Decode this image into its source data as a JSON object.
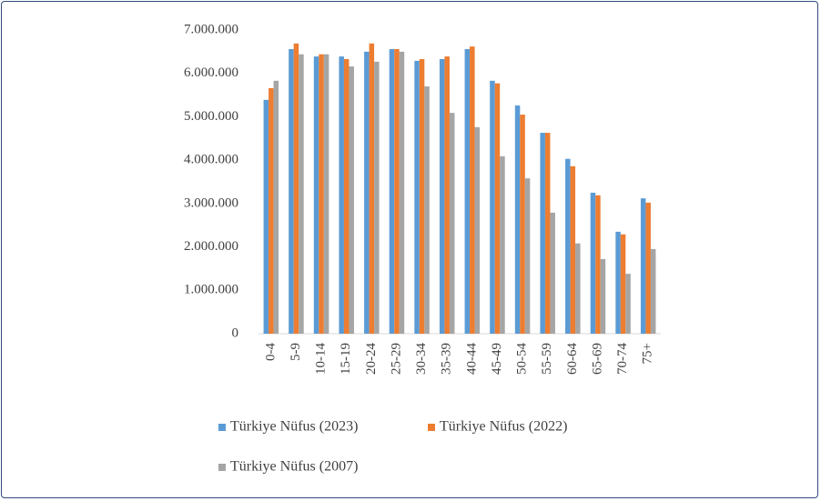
{
  "chart_data": {
    "type": "bar",
    "categories": [
      "0-4",
      "5-9",
      "10-14",
      "15-19",
      "20-24",
      "25-29",
      "30-34",
      "35-39",
      "40-44",
      "45-49",
      "50-54",
      "55-59",
      "60-64",
      "65-69",
      "70-74",
      "75+"
    ],
    "series": [
      {
        "name": "Türkiye Nüfus (2023)",
        "color": "#5b9bd5",
        "values": [
          5390000,
          6560000,
          6390000,
          6390000,
          6500000,
          6560000,
          6290000,
          6330000,
          6560000,
          5830000,
          5260000,
          4630000,
          4030000,
          3250000,
          2350000,
          3120000
        ]
      },
      {
        "name": "Türkiye Nüfus (2022)",
        "color": "#ed7d31",
        "values": [
          5660000,
          6690000,
          6440000,
          6330000,
          6690000,
          6560000,
          6330000,
          6390000,
          6620000,
          5770000,
          5050000,
          4630000,
          3860000,
          3190000,
          2290000,
          3020000
        ]
      },
      {
        "name": "Türkiye Nüfus (2007)",
        "color": "#a5a5a5",
        "values": [
          5830000,
          6440000,
          6440000,
          6160000,
          6270000,
          6500000,
          5700000,
          5090000,
          4760000,
          4090000,
          3580000,
          2790000,
          2080000,
          1720000,
          1380000,
          1950000
        ]
      }
    ],
    "ylim": [
      0,
      7000000
    ],
    "yticks": [
      0,
      {
        "value": 1000000,
        "label": "1.000.000"
      },
      {
        "value": 2000000,
        "label": "2.000.000"
      },
      {
        "value": 3000000,
        "label": "3.000.000"
      },
      {
        "value": 4000000,
        "label": "4.000.000"
      },
      {
        "value": 5000000,
        "label": "5.000.000"
      },
      {
        "value": 6000000,
        "label": "6.000.000"
      },
      {
        "value": 7000000,
        "label": "7.000.000"
      }
    ],
    "grid": false
  }
}
